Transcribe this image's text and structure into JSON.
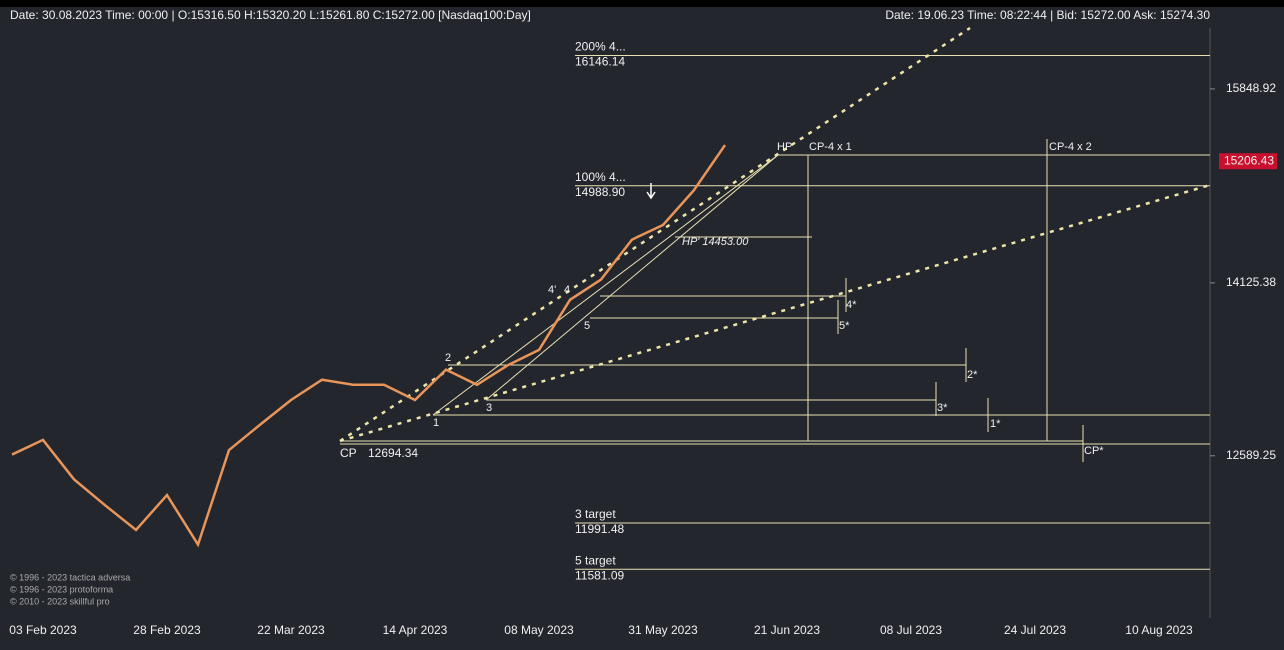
{
  "header": {
    "left": "Date: 30.08.2023 Time: 00:00 | O:15316.50 H:15320.20 L:15261.80 C:15272.00  [Nasdaq100:Day]",
    "right": "Date: 19.06.23 Time: 08:22:44 | Bid: 15272.00 Ask: 15274.30"
  },
  "chart_data": {
    "type": "line",
    "categories": [
      null,
      "03 Feb 2023",
      null,
      null,
      null,
      "28 Feb 2023",
      null,
      null,
      null,
      "22 Mar 2023",
      null,
      null,
      null,
      "14 Apr 2023",
      null,
      null,
      null,
      "08 May 2023",
      null,
      null,
      null,
      "31 May 2023",
      null,
      null,
      null,
      "21 Jun 2023",
      null,
      null,
      null,
      "08 Jul 2023",
      null,
      null,
      null,
      "24 Jul 2023",
      null,
      null,
      null,
      "10 Aug 2023",
      null
    ],
    "series": [
      {
        "color": "#e8955a",
        "values": [
          12600,
          12730,
          12380,
          12150,
          11930,
          12240,
          11800,
          12640,
          12865,
          13085,
          13265,
          13220,
          13220,
          13085,
          13355,
          13220,
          13395,
          13530,
          13975,
          14155,
          14510,
          14640,
          14950,
          15350,
          null,
          null,
          null,
          null,
          null,
          null,
          null,
          null,
          null,
          null,
          null,
          null,
          null,
          null,
          null
        ]
      }
    ],
    "ylim": [
      11130,
      16550
    ],
    "yticks": [
      12589.25,
      14125.38,
      15848.92
    ],
    "last_price": 15206.43,
    "levels": [
      {
        "label": "200%  4...",
        "value": 16146.14
      },
      {
        "label": "100%  4...",
        "value": {
          "value": 14988.9,
          "label": "14988.90"
        }
      },
      {
        "label": "CP",
        "value": 12694.34
      },
      {
        "label": "3 target",
        "value": 11991.48
      },
      {
        "label": "5 target",
        "value": 11581.09
      }
    ],
    "annotations": [
      "HP",
      "CP-4 x 1",
      "CP-4 x 2",
      "HP' 14453.00",
      "2",
      "3",
      "1",
      "4'",
      "4",
      "5",
      "4*",
      "5*",
      "2*",
      "3*",
      "1*",
      "CP*"
    ],
    "copyright": [
      "© 1996 - 2023 tactica adversa",
      "© 1996 - 2023 protoforma",
      "© 2010 - 2023 skillful pro"
    ]
  }
}
